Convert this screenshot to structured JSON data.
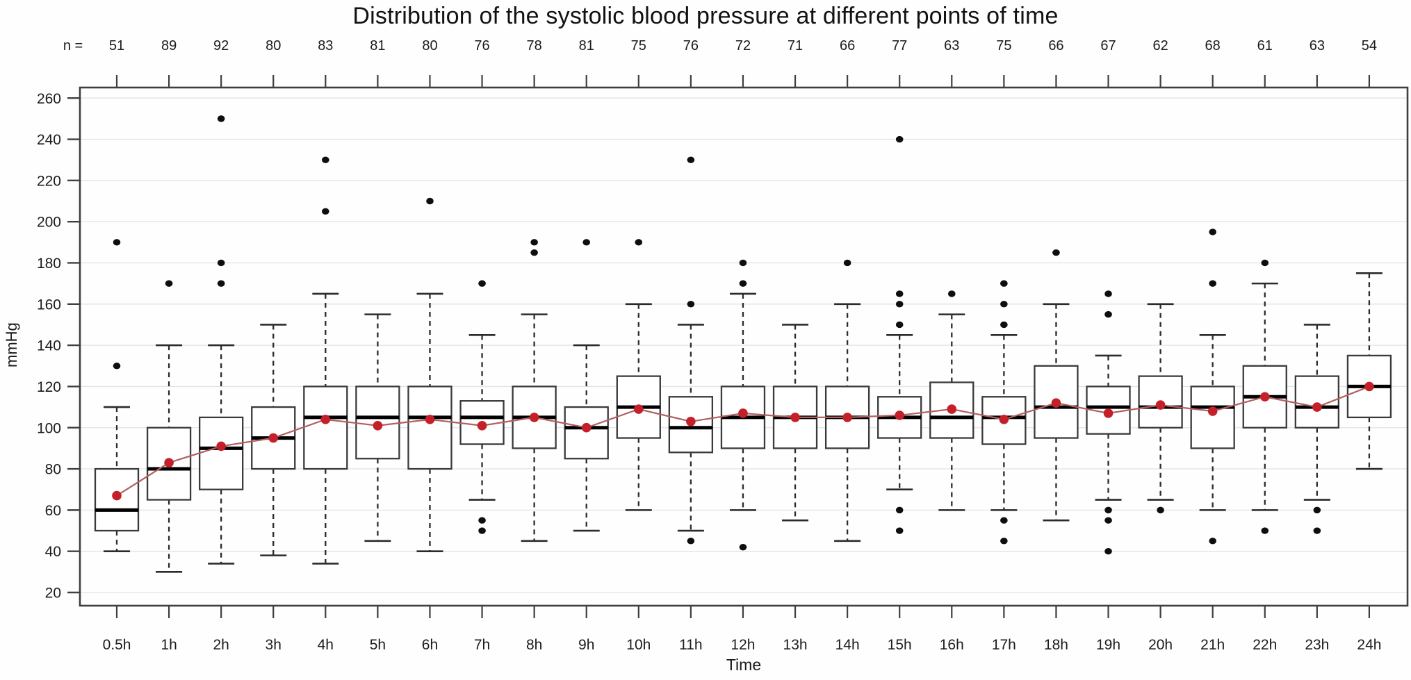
{
  "chart_data": {
    "type": "boxplot",
    "title": "Distribution of the systolic blood pressure at different points of time",
    "ylabel": "mmHg",
    "xlabel": "Time",
    "n_label": "n =",
    "ylim": [
      20,
      260
    ],
    "ytick_step": 20,
    "grid": true,
    "categories": [
      "0.5h",
      "1h",
      "2h",
      "3h",
      "4h",
      "5h",
      "6h",
      "7h",
      "8h",
      "9h",
      "10h",
      "11h",
      "12h",
      "13h",
      "14h",
      "15h",
      "16h",
      "17h",
      "18h",
      "19h",
      "20h",
      "21h",
      "22h",
      "23h",
      "24h"
    ],
    "n": [
      51,
      89,
      92,
      80,
      83,
      81,
      80,
      76,
      78,
      81,
      75,
      76,
      72,
      71,
      66,
      77,
      63,
      75,
      66,
      67,
      62,
      68,
      61,
      63,
      54
    ],
    "whisker_low": [
      40,
      30,
      34,
      38,
      34,
      45,
      40,
      65,
      45,
      50,
      60,
      50,
      60,
      55,
      45,
      70,
      60,
      60,
      55,
      65,
      65,
      60,
      60,
      65,
      80
    ],
    "q1": [
      50,
      65,
      70,
      80,
      80,
      85,
      80,
      92,
      90,
      85,
      95,
      88,
      90,
      90,
      90,
      95,
      95,
      92,
      95,
      97,
      100,
      90,
      100,
      100,
      105
    ],
    "median": [
      60,
      80,
      90,
      95,
      105,
      105,
      105,
      105,
      105,
      100,
      110,
      100,
      105,
      105,
      105,
      105,
      105,
      105,
      110,
      110,
      110,
      110,
      115,
      110,
      120
    ],
    "q3": [
      80,
      100,
      105,
      110,
      120,
      120,
      120,
      113,
      120,
      110,
      125,
      115,
      120,
      120,
      120,
      115,
      122,
      115,
      130,
      120,
      125,
      120,
      130,
      125,
      135
    ],
    "whisker_high": [
      110,
      140,
      140,
      150,
      165,
      155,
      165,
      145,
      155,
      140,
      160,
      150,
      165,
      150,
      160,
      145,
      155,
      145,
      160,
      135,
      160,
      145,
      170,
      150,
      175
    ],
    "mean": [
      67,
      83,
      91,
      95,
      104,
      101,
      104,
      101,
      105,
      100,
      109,
      103,
      107,
      105,
      105,
      106,
      109,
      104,
      112,
      107,
      111,
      108,
      115,
      110,
      120
    ],
    "outliers_high": [
      [
        130,
        190
      ],
      [
        170
      ],
      [
        170,
        180,
        250
      ],
      [],
      [
        205,
        230
      ],
      [],
      [
        210
      ],
      [
        170
      ],
      [
        185,
        190
      ],
      [
        190
      ],
      [
        190
      ],
      [
        160,
        230
      ],
      [
        170,
        180
      ],
      [],
      [
        180
      ],
      [
        150,
        160,
        165,
        240
      ],
      [
        165
      ],
      [
        150,
        160,
        170
      ],
      [
        185
      ],
      [
        155,
        165
      ],
      [],
      [
        170,
        195
      ],
      [
        180
      ],
      [],
      []
    ],
    "outliers_low": [
      [],
      [],
      [],
      [],
      [],
      [],
      [],
      [
        50,
        55
      ],
      [],
      [],
      [],
      [
        45
      ],
      [
        42
      ],
      [],
      [],
      [
        50,
        60
      ],
      [],
      [
        45,
        55
      ],
      [],
      [
        40,
        55,
        60
      ],
      [
        60
      ],
      [
        45
      ],
      [
        50
      ],
      [
        50,
        60
      ],
      []
    ],
    "colors": {
      "box_border": "#3a3a3a",
      "median": "#000000",
      "whisker": "#2b2b2b",
      "outlier": "#0e0e0e",
      "mean_dot": "#c4202a",
      "mean_line": "#b26060",
      "grid": "#e3e3e3",
      "axis": "#3f3f3f",
      "text": "#1b1b1b"
    }
  }
}
